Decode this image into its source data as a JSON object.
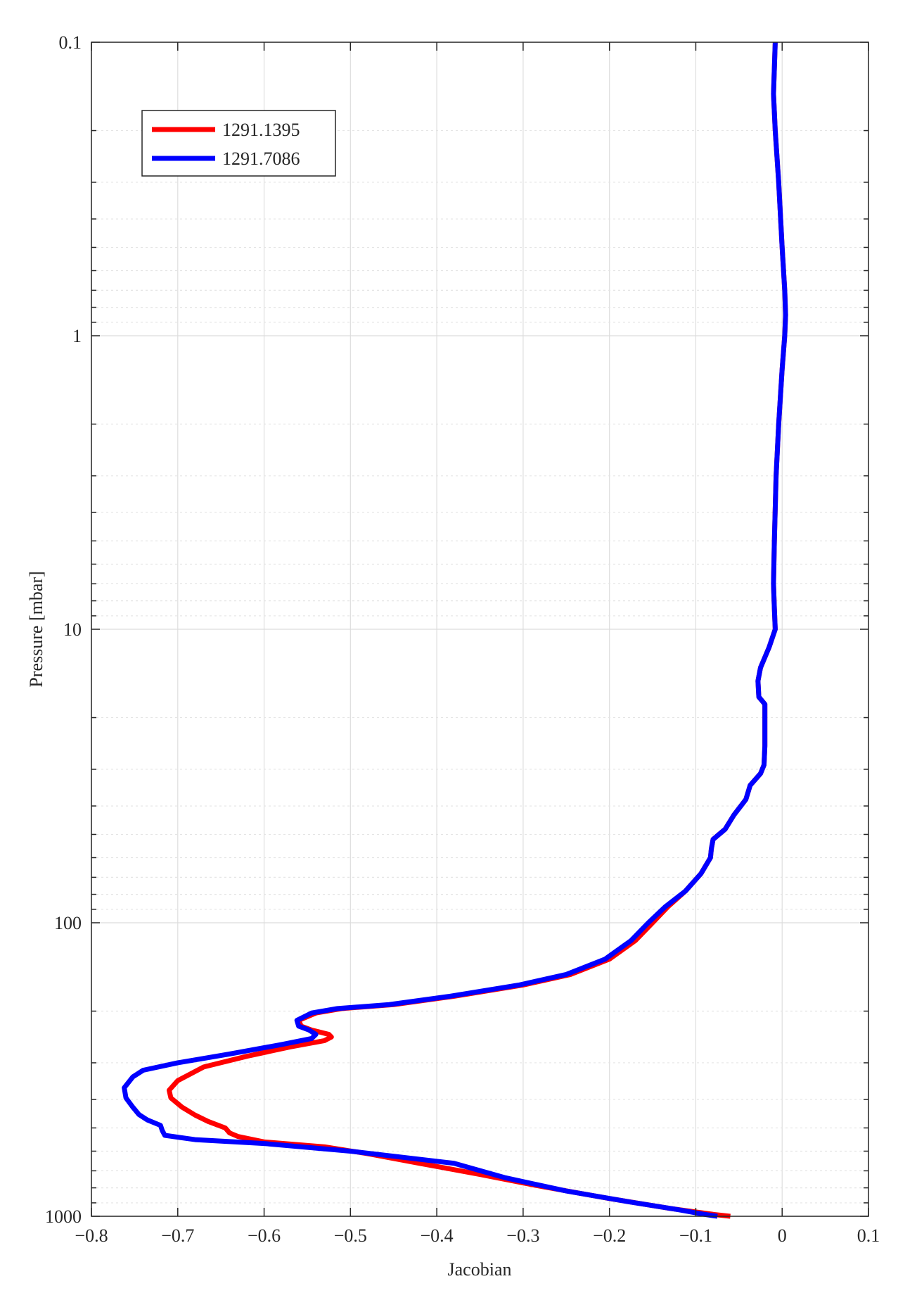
{
  "chart_data": {
    "type": "line",
    "title": "",
    "xlabel": "Jacobian",
    "ylabel": "Pressure [mbar]",
    "xlim": [
      -0.8,
      0.1
    ],
    "ylim": [
      0.1,
      1000
    ],
    "yscale": "log",
    "yreversed": true,
    "grid": true,
    "legend_position": "top-left",
    "x_ticks": [
      -0.8,
      -0.7,
      -0.6,
      -0.5,
      -0.4,
      -0.3,
      -0.2,
      -0.1,
      0,
      0.1
    ],
    "x_tick_labels": [
      "−0.8",
      "−0.7",
      "−0.6",
      "−0.5",
      "−0.4",
      "−0.3",
      "−0.2",
      "−0.1",
      "0",
      "0.1"
    ],
    "y_ticks": [
      0.1,
      1,
      10,
      100,
      1000
    ],
    "y_tick_labels": [
      "0.1",
      "1",
      "10",
      "100",
      "1000"
    ],
    "series": [
      {
        "name": "1291.1395",
        "color": "#ff0000",
        "points": [
          [
            -0.008,
            0.1
          ],
          [
            -0.01,
            0.15
          ],
          [
            -0.008,
            0.2
          ],
          [
            -0.004,
            0.3
          ],
          [
            0.0,
            0.5
          ],
          [
            0.003,
            0.7
          ],
          [
            0.004,
            0.85
          ],
          [
            0.003,
            1.0
          ],
          [
            0.0,
            1.3
          ],
          [
            -0.004,
            2.0
          ],
          [
            -0.007,
            3.0
          ],
          [
            -0.009,
            5.0
          ],
          [
            -0.01,
            7.0
          ],
          [
            -0.009,
            8.5
          ],
          [
            -0.008,
            10
          ],
          [
            -0.015,
            11.5
          ],
          [
            -0.025,
            13.5
          ],
          [
            -0.028,
            15
          ],
          [
            -0.027,
            17
          ],
          [
            -0.02,
            18
          ],
          [
            -0.02,
            25
          ],
          [
            -0.021,
            29
          ],
          [
            -0.025,
            31
          ],
          [
            -0.037,
            34
          ],
          [
            -0.042,
            38
          ],
          [
            -0.056,
            43
          ],
          [
            -0.066,
            48
          ],
          [
            -0.08,
            52
          ],
          [
            -0.082,
            56
          ],
          [
            -0.083,
            60
          ],
          [
            -0.094,
            68
          ],
          [
            -0.112,
            78
          ],
          [
            -0.132,
            88
          ],
          [
            -0.15,
            100
          ],
          [
            -0.17,
            115
          ],
          [
            -0.2,
            133
          ],
          [
            -0.245,
            150
          ],
          [
            -0.3,
            163
          ],
          [
            -0.38,
            178
          ],
          [
            -0.45,
            190
          ],
          [
            -0.51,
            196
          ],
          [
            -0.54,
            203
          ],
          [
            -0.56,
            215
          ],
          [
            -0.557,
            225
          ],
          [
            -0.545,
            232
          ],
          [
            -0.525,
            240
          ],
          [
            -0.522,
            245
          ],
          [
            -0.53,
            252
          ],
          [
            -0.57,
            265
          ],
          [
            -0.62,
            285
          ],
          [
            -0.67,
            310
          ],
          [
            -0.7,
            345
          ],
          [
            -0.71,
            372
          ],
          [
            -0.708,
            395
          ],
          [
            -0.695,
            425
          ],
          [
            -0.68,
            452
          ],
          [
            -0.665,
            475
          ],
          [
            -0.645,
            500
          ],
          [
            -0.64,
            520
          ],
          [
            -0.63,
            535
          ],
          [
            -0.6,
            558
          ],
          [
            -0.53,
            580
          ],
          [
            -0.48,
            612
          ],
          [
            -0.42,
            660
          ],
          [
            -0.35,
            720
          ],
          [
            -0.28,
            790
          ],
          [
            -0.2,
            870
          ],
          [
            -0.13,
            940
          ],
          [
            -0.08,
            985
          ],
          [
            -0.06,
            1000
          ]
        ]
      },
      {
        "name": "1291.7086",
        "color": "#0000ff",
        "points": [
          [
            -0.008,
            0.1
          ],
          [
            -0.01,
            0.15
          ],
          [
            -0.008,
            0.2
          ],
          [
            -0.004,
            0.3
          ],
          [
            0.0,
            0.5
          ],
          [
            0.003,
            0.7
          ],
          [
            0.004,
            0.85
          ],
          [
            0.003,
            1.0
          ],
          [
            0.0,
            1.3
          ],
          [
            -0.004,
            2.0
          ],
          [
            -0.007,
            3.0
          ],
          [
            -0.009,
            5.0
          ],
          [
            -0.01,
            7.0
          ],
          [
            -0.009,
            8.5
          ],
          [
            -0.008,
            10
          ],
          [
            -0.015,
            11.5
          ],
          [
            -0.025,
            13.5
          ],
          [
            -0.028,
            15
          ],
          [
            -0.027,
            17
          ],
          [
            -0.02,
            18
          ],
          [
            -0.02,
            25
          ],
          [
            -0.021,
            29
          ],
          [
            -0.025,
            31
          ],
          [
            -0.037,
            34
          ],
          [
            -0.042,
            38
          ],
          [
            -0.056,
            43
          ],
          [
            -0.066,
            48
          ],
          [
            -0.08,
            52
          ],
          [
            -0.082,
            56
          ],
          [
            -0.083,
            60
          ],
          [
            -0.094,
            68
          ],
          [
            -0.112,
            78
          ],
          [
            -0.135,
            88
          ],
          [
            -0.155,
            100
          ],
          [
            -0.175,
            115
          ],
          [
            -0.205,
            133
          ],
          [
            -0.25,
            150
          ],
          [
            -0.305,
            163
          ],
          [
            -0.385,
            178
          ],
          [
            -0.455,
            190
          ],
          [
            -0.515,
            196
          ],
          [
            -0.545,
            203
          ],
          [
            -0.562,
            215
          ],
          [
            -0.56,
            225
          ],
          [
            -0.548,
            232
          ],
          [
            -0.54,
            240
          ],
          [
            -0.545,
            248
          ],
          [
            -0.58,
            260
          ],
          [
            -0.64,
            280
          ],
          [
            -0.7,
            300
          ],
          [
            -0.74,
            318
          ],
          [
            -0.752,
            335
          ],
          [
            -0.762,
            365
          ],
          [
            -0.76,
            395
          ],
          [
            -0.752,
            425
          ],
          [
            -0.745,
            450
          ],
          [
            -0.735,
            470
          ],
          [
            -0.72,
            490
          ],
          [
            -0.718,
            510
          ],
          [
            -0.715,
            530
          ],
          [
            -0.68,
            548
          ],
          [
            -0.6,
            565
          ],
          [
            -0.5,
            600
          ],
          [
            -0.38,
            660
          ],
          [
            -0.32,
            740
          ],
          [
            -0.25,
            820
          ],
          [
            -0.18,
            890
          ],
          [
            -0.12,
            950
          ],
          [
            -0.09,
            985
          ],
          [
            -0.075,
            1000
          ]
        ]
      }
    ]
  }
}
